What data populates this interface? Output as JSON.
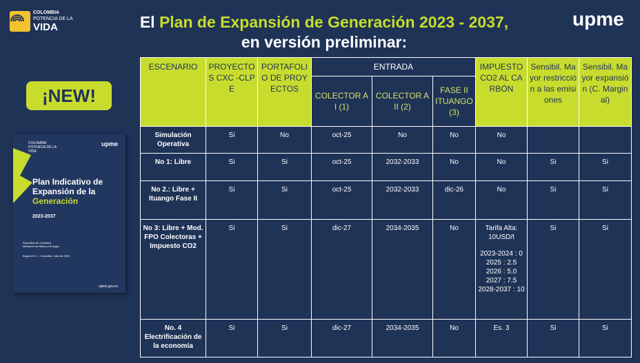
{
  "header": {
    "logo_left": [
      "COLOMBIA",
      "POTENCIA DE LA",
      "VIDA"
    ],
    "logo_right": "upme",
    "title_lead": "El",
    "title_highlight": "Plan de Expansión de Generación 2023 - 2037,",
    "title_line2": "en versión preliminar:"
  },
  "badge": "¡NEW!",
  "cover": {
    "logo_left": "COLOMBIA POTENCIA DE LA VIDA",
    "logo_right": "upme",
    "title": "Plan Indicativo de Expansión de la",
    "title_highlight": "Generación",
    "years": "2023-2037",
    "org": [
      "República de Colombia",
      "Ministerio de Minas y Energía"
    ],
    "place": "Bogotá D.C. - Colombia, Julio de 2023",
    "url": "upme.gov.co"
  },
  "table": {
    "headers": [
      "ESCENARIO",
      "PROYECTOS CXC -CLPE",
      "PORTAFOLIO DE PROYECTOS",
      "ENTRADA",
      "IMPUESTO CO2 AL CARBÓN",
      "Sensibil. Mayor restricción a las emisiones",
      "Sensibil. Mayor expansión (C. Marginal)"
    ],
    "subheaders": [
      "COLECTOR A I (1)",
      "COLECTOR A II (2)",
      "FASE II ITUANGO (3)"
    ],
    "rows": [
      [
        "Simulación Operativa",
        "Si",
        "No",
        "oct-25",
        "No",
        "No",
        "No",
        null,
        null
      ],
      [
        "No 1: Libre",
        "Si",
        "Si",
        "oct-25",
        "2032-2033",
        "No",
        "No",
        "Si",
        "Si"
      ],
      [
        "No 2.: Libre + Ituango Fase II",
        "Si",
        "Si",
        "oct-25",
        "2032-2033",
        "dic-26",
        "No",
        "Si",
        "Si"
      ],
      [
        "No 3: Libre + Mod. FPO Colectoras + Impuesto CO2",
        "Si",
        "Si",
        "dic-27",
        "2034-2035",
        "No",
        [
          "Tarifa Alta: 10USD/t",
          "2023-2024 : 0",
          "2025 : 2.5",
          "2026 : 5.0",
          "2027 : 7.5",
          "2028-2037 : 10"
        ],
        "Si",
        "Si"
      ],
      [
        "No. 4 Electrificación de la economía",
        "Si",
        "Si",
        "dic-27",
        "2034-2035",
        "No",
        "Es. 3",
        "Si",
        "Si"
      ]
    ]
  }
}
